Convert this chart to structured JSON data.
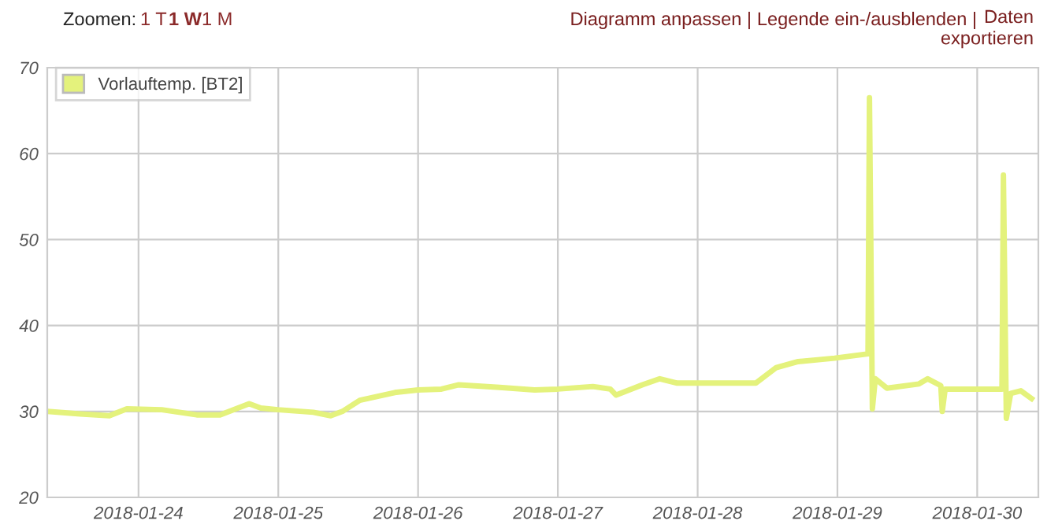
{
  "chart_data": {
    "type": "line",
    "annotations": [
      "Zoomen:",
      "1 T",
      "1 W",
      "1 M",
      "Diagramm anpassen |",
      "Legende ein-/ausblenden |",
      "Daten exportieren"
    ],
    "series": [
      {
        "name": "Vorlauftemp. [BT2]",
        "color": "#e4f27c",
        "x": [
          "2018-01-23T08:20",
          "2018-01-23T14:00",
          "2018-01-23T19:00",
          "2018-01-23T22:00",
          "2018-01-24T04:00",
          "2018-01-24T10:00",
          "2018-01-24T14:00",
          "2018-01-24T19:00",
          "2018-01-24T21:00",
          "2018-01-25T00:00",
          "2018-01-25T06:00",
          "2018-01-25T09:00",
          "2018-01-25T11:00",
          "2018-01-25T14:00",
          "2018-01-25T20:00",
          "2018-01-26T00:00",
          "2018-01-26T04:00",
          "2018-01-26T07:00",
          "2018-01-26T14:00",
          "2018-01-26T20:00",
          "2018-01-27T00:00",
          "2018-01-27T06:00",
          "2018-01-27T09:00",
          "2018-01-27T10:00",
          "2018-01-27T14:30",
          "2018-01-27T17:30",
          "2018-01-27T20:30",
          "2018-01-28T00:00",
          "2018-01-28T10:00",
          "2018-01-28T13:30",
          "2018-01-28T17:15",
          "2018-01-28T23:30",
          "2018-01-29T05:15",
          "2018-01-29T05:30",
          "2018-01-29T06:00",
          "2018-01-29T06:30",
          "2018-01-29T08:30",
          "2018-01-29T14:00",
          "2018-01-29T15:30",
          "2018-01-29T17:45",
          "2018-01-29T18:00",
          "2018-01-29T18:30",
          "2018-01-30T04:15",
          "2018-01-30T04:30",
          "2018-01-30T05:00",
          "2018-01-30T05:45",
          "2018-01-30T07:30",
          "2018-01-30T09:20"
        ],
        "values": [
          30.0,
          29.7,
          29.5,
          30.3,
          30.2,
          29.6,
          29.6,
          30.9,
          30.4,
          30.2,
          29.9,
          29.5,
          30.0,
          31.3,
          32.2,
          32.5,
          32.6,
          33.1,
          32.8,
          32.5,
          32.6,
          32.9,
          32.6,
          31.9,
          33.1,
          33.8,
          33.3,
          33.3,
          33.3,
          35.1,
          35.8,
          36.2,
          36.7,
          66.5,
          30.3,
          33.8,
          32.7,
          33.2,
          33.8,
          33.0,
          30.0,
          32.6,
          32.6,
          57.5,
          29.2,
          32.1,
          32.4,
          31.5
        ]
      }
    ],
    "xlim": [
      "2018-01-23T08:20",
      "2018-01-30T10:30"
    ],
    "xticks": [
      {
        "value": "2018-01-24",
        "label": "2018-01-24"
      },
      {
        "value": "2018-01-25",
        "label": "2018-01-25"
      },
      {
        "value": "2018-01-26",
        "label": "2018-01-26"
      },
      {
        "value": "2018-01-27",
        "label": "2018-01-27"
      },
      {
        "value": "2018-01-28",
        "label": "2018-01-28"
      },
      {
        "value": "2018-01-29",
        "label": "2018-01-29"
      },
      {
        "value": "2018-01-30",
        "label": "2018-01-30"
      }
    ],
    "ylim": [
      20,
      70
    ],
    "yticks": [
      20,
      30,
      40,
      50,
      60,
      70
    ],
    "grid": true,
    "legend": "top left",
    "marker": "none",
    "line_style": "solid"
  }
}
